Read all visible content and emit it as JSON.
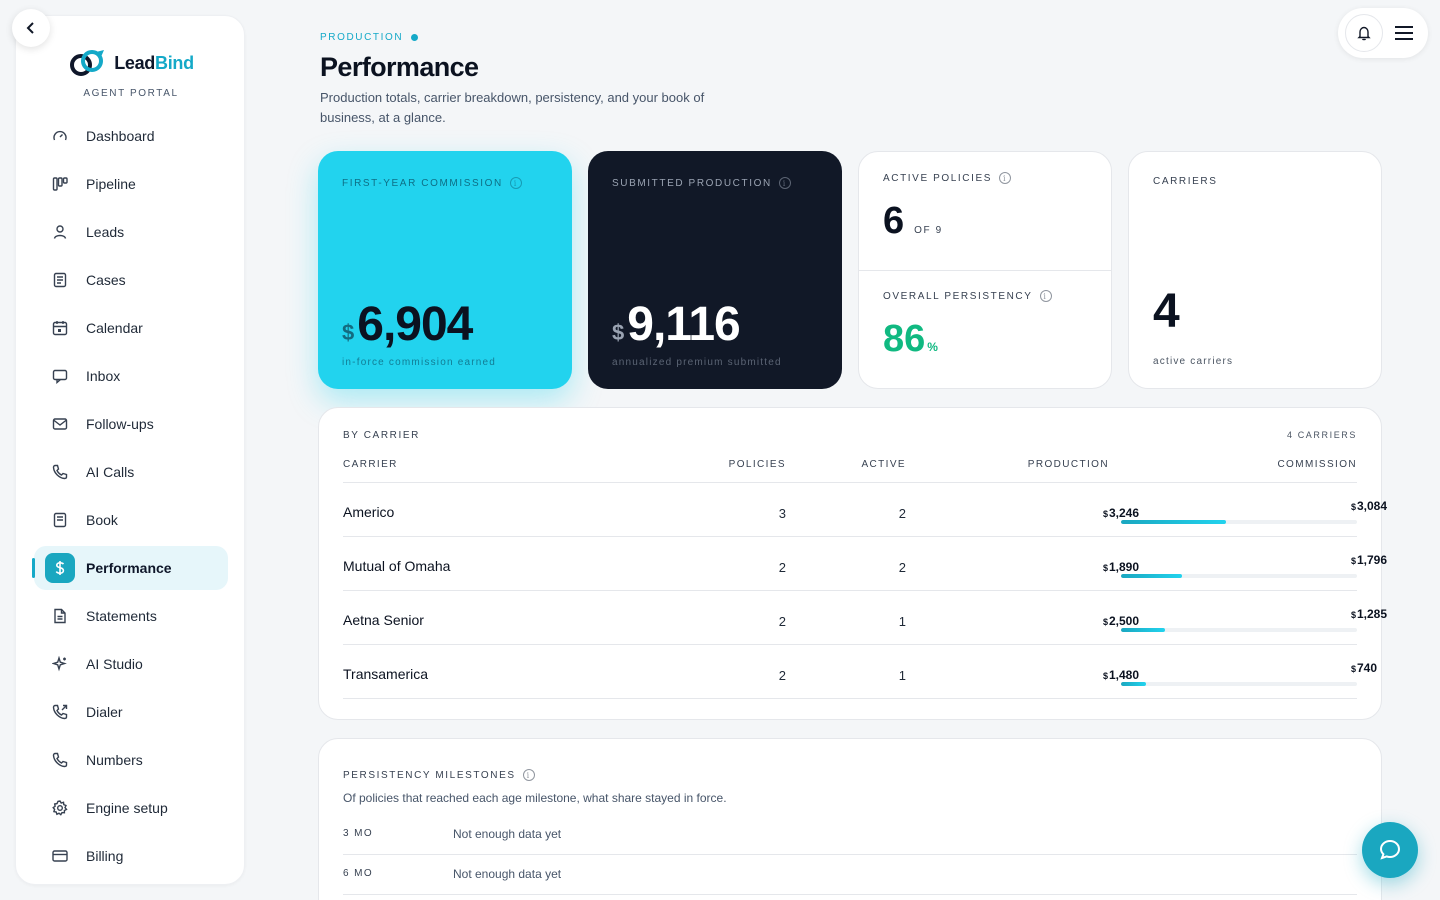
{
  "brand": {
    "name_part1": "Lead",
    "name_part2": "Bind",
    "subtitle": "AGENT PORTAL"
  },
  "nav": {
    "items": [
      {
        "label": "Dashboard",
        "icon": "gauge-icon"
      },
      {
        "label": "Pipeline",
        "icon": "kanban-icon"
      },
      {
        "label": "Leads",
        "icon": "user-icon"
      },
      {
        "label": "Cases",
        "icon": "document-icon"
      },
      {
        "label": "Calendar",
        "icon": "calendar-icon"
      },
      {
        "label": "Inbox",
        "icon": "message-icon"
      },
      {
        "label": "Follow-ups",
        "icon": "mail-icon"
      },
      {
        "label": "AI Calls",
        "icon": "phone-icon"
      },
      {
        "label": "Book",
        "icon": "book-icon"
      },
      {
        "label": "Performance",
        "icon": "dollar-icon",
        "active": true
      },
      {
        "label": "Statements",
        "icon": "file-icon"
      },
      {
        "label": "AI Studio",
        "icon": "sparkle-icon"
      },
      {
        "label": "Dialer",
        "icon": "phone-outgoing-icon"
      },
      {
        "label": "Numbers",
        "icon": "phone-icon"
      },
      {
        "label": "Engine setup",
        "icon": "gear-icon"
      },
      {
        "label": "Billing",
        "icon": "credit-card-icon"
      }
    ]
  },
  "header": {
    "eyebrow": "PRODUCTION",
    "title": "Performance",
    "description": "Production totals, carrier breakdown, persistency, and your book of business, at a glance."
  },
  "kpis": {
    "commission": {
      "label": "FIRST-YEAR COMMISSION",
      "currency": "$",
      "value": "6,904",
      "sub": "in-force commission earned"
    },
    "production": {
      "label": "SUBMITTED PRODUCTION",
      "currency": "$",
      "value": "9,116",
      "sub": "annualized premium submitted"
    },
    "policies": {
      "label": "ACTIVE POLICIES",
      "value": "6",
      "of": "OF 9"
    },
    "persistency": {
      "label": "OVERALL PERSISTENCY",
      "value": "86",
      "unit": "%"
    },
    "carriers": {
      "label": "CARRIERS",
      "value": "4",
      "sub": "active carriers"
    }
  },
  "carrier_table": {
    "title": "BY CARRIER",
    "count": "4 CARRIERS",
    "columns": [
      "CARRIER",
      "POLICIES",
      "ACTIVE",
      "PRODUCTION",
      "COMMISSION"
    ],
    "rows": [
      {
        "carrier": "Americo",
        "policies": "3",
        "active": "2",
        "production": "3,246",
        "commission": "3,084",
        "commission_fraction": 0.447
      },
      {
        "carrier": "Mutual of Omaha",
        "policies": "2",
        "active": "2",
        "production": "1,890",
        "commission": "1,796",
        "commission_fraction": 0.26
      },
      {
        "carrier": "Aetna Senior",
        "policies": "2",
        "active": "1",
        "production": "2,500",
        "commission": "1,285",
        "commission_fraction": 0.186
      },
      {
        "carrier": "Transamerica",
        "policies": "2",
        "active": "1",
        "production": "1,480",
        "commission": "740",
        "commission_fraction": 0.107
      }
    ],
    "currency": "$"
  },
  "persistency": {
    "title": "PERSISTENCY MILESTONES",
    "description": "Of policies that reached each age milestone, what share stayed in force.",
    "milestones": [
      {
        "label": "3 MO",
        "status": "Not enough data yet"
      },
      {
        "label": "6 MO",
        "status": "Not enough data yet"
      }
    ]
  },
  "colors": {
    "accent": "#14a9c8",
    "cyan": "#22d3ee",
    "dark": "#111827",
    "success": "#10b981"
  }
}
